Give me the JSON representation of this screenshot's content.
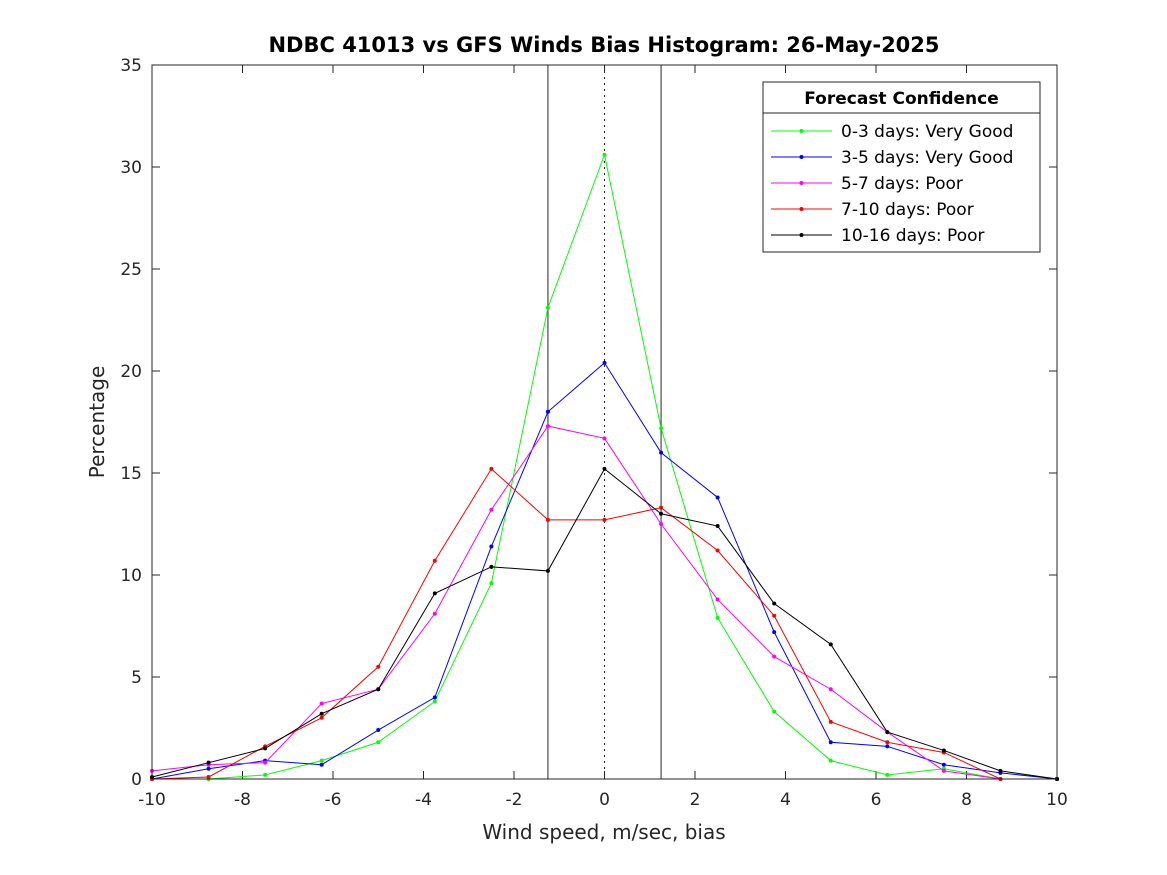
{
  "chart_data": {
    "type": "line",
    "title": "NDBC 41013 vs GFS Winds Bias Histogram: 26-May-2025",
    "xlabel": "Wind speed, m/sec, bias",
    "ylabel": "Percentage",
    "xlim": [
      -10,
      10
    ],
    "ylim": [
      0,
      35
    ],
    "xticks": [
      -10,
      -8,
      -6,
      -4,
      -2,
      0,
      2,
      4,
      6,
      8,
      10
    ],
    "yticks": [
      0,
      5,
      10,
      15,
      20,
      25,
      30,
      35
    ],
    "grid": false,
    "legend": {
      "title": "Forecast Confidence",
      "placement": "top-right"
    },
    "vertical_lines": [
      {
        "x": -1.25,
        "style": "solid"
      },
      {
        "x": 0,
        "style": "dotted"
      },
      {
        "x": 1.25,
        "style": "solid"
      }
    ],
    "x": [
      -10,
      -8.75,
      -7.5,
      -6.25,
      -5,
      -3.75,
      -2.5,
      -1.25,
      0,
      1.25,
      2.5,
      3.75,
      5,
      6.25,
      7.5,
      8.75,
      10
    ],
    "series": [
      {
        "name": "0-3 days: Very Good",
        "color": "#00ff00",
        "values": [
          0,
          0,
          0.2,
          0.9,
          1.8,
          3.8,
          9.6,
          23.1,
          30.6,
          17.2,
          7.9,
          3.3,
          0.9,
          0.2,
          0.5,
          0,
          0
        ]
      },
      {
        "name": "3-5 days: Very Good",
        "color": "#0000ff",
        "values": [
          0,
          0.5,
          0.9,
          0.7,
          2.4,
          4.0,
          11.4,
          18.0,
          20.4,
          16.0,
          13.8,
          7.2,
          1.8,
          1.6,
          0.7,
          0.3,
          0
        ]
      },
      {
        "name": "5-7 days: Poor",
        "color": "#ff00ff",
        "values": [
          0.4,
          0.7,
          0.8,
          3.7,
          4.4,
          8.1,
          13.2,
          17.3,
          16.7,
          12.5,
          8.8,
          6.0,
          4.4,
          2.3,
          0.4,
          0,
          0
        ]
      },
      {
        "name": "7-10 days: Poor",
        "color": "#ff0000",
        "values": [
          0,
          0.1,
          1.6,
          3.0,
          5.5,
          10.7,
          15.2,
          12.7,
          12.7,
          13.3,
          11.2,
          8.0,
          2.8,
          1.8,
          1.3,
          0,
          0
        ]
      },
      {
        "name": "10-16 days: Poor",
        "color": "#000000",
        "values": [
          0.1,
          0.8,
          1.5,
          3.2,
          4.4,
          9.1,
          10.4,
          10.2,
          15.2,
          13.0,
          12.4,
          8.6,
          6.6,
          2.3,
          1.4,
          0.4,
          0
        ]
      }
    ]
  }
}
